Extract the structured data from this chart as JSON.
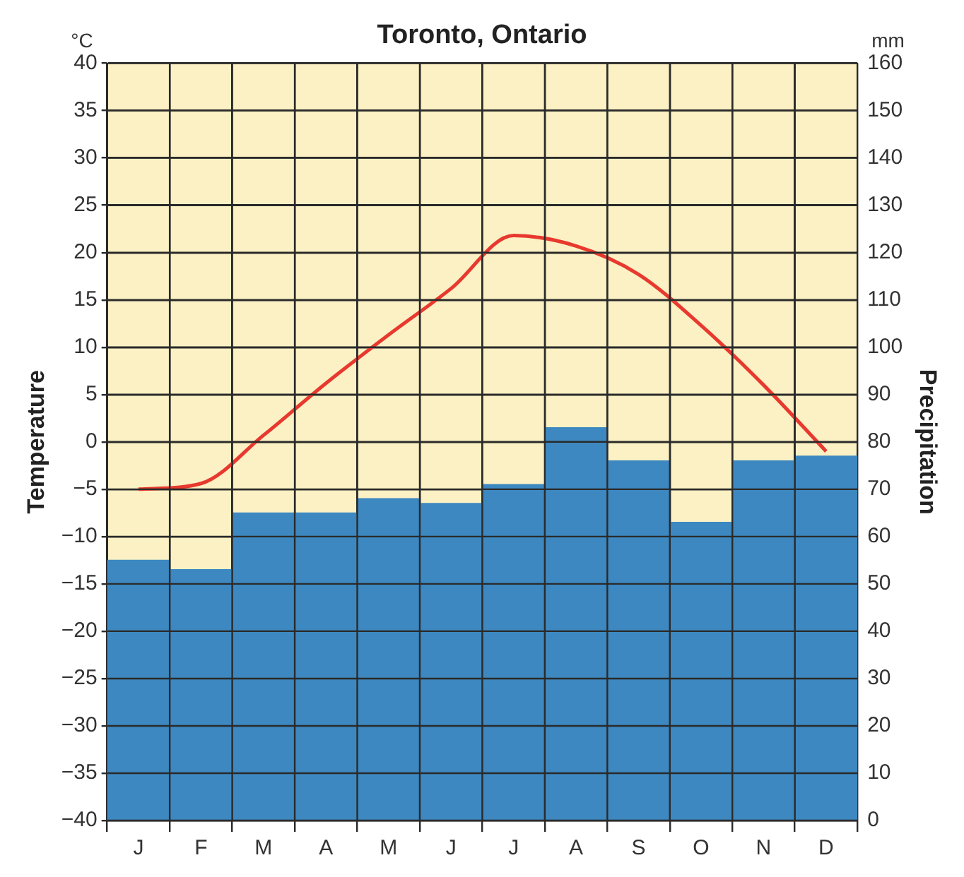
{
  "chart_data": {
    "type": "bar",
    "title": "Toronto, Ontario",
    "ylabel": "Temperature",
    "y2label": "Precipitation",
    "annotations": [
      "°C",
      "mm"
    ],
    "categories": [
      "J",
      "F",
      "M",
      "A",
      "M",
      "J",
      "J",
      "A",
      "S",
      "O",
      "N",
      "D"
    ],
    "series": [
      {
        "axis": "y2",
        "color": "#3d88c0",
        "values": [
          55,
          53,
          65,
          65,
          68,
          67,
          71,
          83,
          76,
          63,
          76,
          77
        ]
      },
      {
        "type": "line",
        "axis": "y",
        "color": "#e8392f",
        "marker": "none",
        "values": [
          -5,
          -4.4,
          0.7,
          6.2,
          11.3,
          16.2,
          21.8,
          20.7,
          17.7,
          12.3,
          6,
          -1
        ]
      }
    ],
    "ylim": [
      -40,
      40
    ],
    "yticks": [
      -40,
      -35,
      -30,
      -25,
      -20,
      -15,
      -10,
      -5,
      0,
      5,
      10,
      15,
      20,
      25,
      30,
      35,
      40
    ],
    "y2lim": [
      0,
      160
    ],
    "y2ticks": [
      0,
      10,
      20,
      30,
      40,
      50,
      60,
      70,
      80,
      90,
      100,
      110,
      120,
      130,
      140,
      150,
      160
    ],
    "grid": true,
    "legend": false
  }
}
